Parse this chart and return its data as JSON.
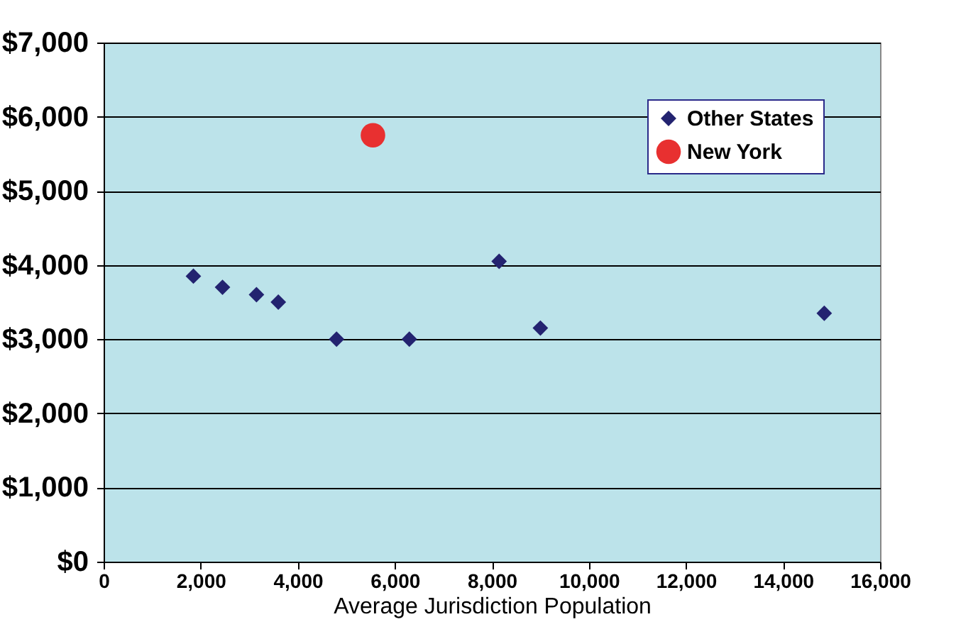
{
  "chart_data": {
    "type": "scatter",
    "xlabel": "Average Jurisdiction Population",
    "xlim": [
      0,
      16000
    ],
    "xticks": [
      {
        "value": 0,
        "label": "0"
      },
      {
        "value": 2000,
        "label": "2,000"
      },
      {
        "value": 4000,
        "label": "4,000"
      },
      {
        "value": 6000,
        "label": "6,000"
      },
      {
        "value": 8000,
        "label": "8,000"
      },
      {
        "value": 10000,
        "label": "10,000"
      },
      {
        "value": 12000,
        "label": "12,000"
      },
      {
        "value": 14000,
        "label": "14,000"
      },
      {
        "value": 16000,
        "label": "16,000"
      }
    ],
    "ylim": [
      0,
      7000
    ],
    "yticks": [
      {
        "value": 0,
        "label": "$0"
      },
      {
        "value": 1000,
        "label": "$1,000"
      },
      {
        "value": 2000,
        "label": "$2,000"
      },
      {
        "value": 3000,
        "label": "$3,000"
      },
      {
        "value": 4000,
        "label": "$4,000"
      },
      {
        "value": 5000,
        "label": "$5,000"
      },
      {
        "value": 6000,
        "label": "$6,000"
      },
      {
        "value": 7000,
        "label": "$7,000"
      }
    ],
    "grid": "y",
    "legend": "top right",
    "series": [
      {
        "name": "Other States",
        "color": "#232370",
        "marker": "diamond",
        "x": [
          1850,
          2450,
          3150,
          3600,
          4800,
          6300,
          8150,
          9000,
          14850
        ],
        "values": [
          3850,
          3700,
          3600,
          3500,
          3000,
          3000,
          4050,
          3150,
          3350
        ]
      },
      {
        "name": "New York",
        "color": "#e83030",
        "marker": "circle",
        "x": [
          5550
        ],
        "values": [
          5750
        ]
      }
    ]
  }
}
